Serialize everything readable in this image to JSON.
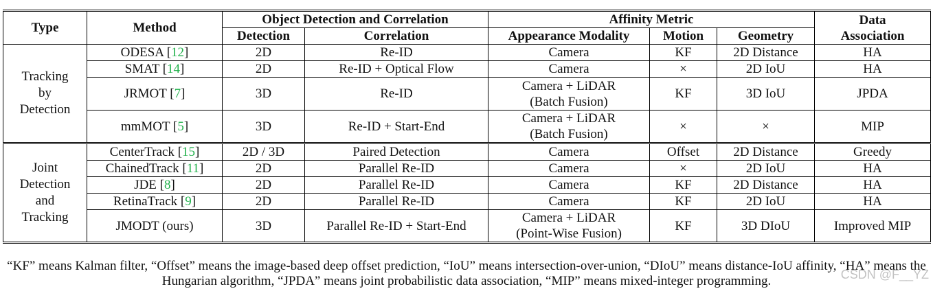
{
  "headers": {
    "type": "Type",
    "method": "Method",
    "odc_group": "Object Detection and Correlation",
    "affinity_group": "Affinity Metric",
    "da_line1": "Data",
    "da_line2": "Association",
    "detection": "Detection",
    "correlation": "Correlation",
    "appearance": "Appearance Modality",
    "motion": "Motion",
    "geometry": "Geometry"
  },
  "groups": [
    {
      "label_lines": [
        "Tracking",
        "by",
        "Detection"
      ]
    },
    {
      "label_lines": [
        "Joint",
        "Detection",
        "and",
        "Tracking"
      ]
    }
  ],
  "rows": [
    {
      "method": "ODESA",
      "ref": "12",
      "detection": "2D",
      "correlation": "Re-ID",
      "appearance": [
        "Camera"
      ],
      "motion": "KF",
      "geometry": "2D Distance",
      "association": "HA"
    },
    {
      "method": "SMAT",
      "ref": "14",
      "detection": "2D",
      "correlation": "Re-ID + Optical Flow",
      "appearance": [
        "Camera"
      ],
      "motion": "×",
      "geometry": "2D IoU",
      "association": "HA"
    },
    {
      "method": "JRMOT",
      "ref": "7",
      "detection": "3D",
      "correlation": "Re-ID",
      "appearance": [
        "Camera + LiDAR",
        "(Batch Fusion)"
      ],
      "motion": "KF",
      "geometry": "3D IoU",
      "association": "JPDA"
    },
    {
      "method": "mmMOT",
      "ref": "5",
      "detection": "3D",
      "correlation": "Re-ID + Start-End",
      "appearance": [
        "Camera + LiDAR",
        "(Batch Fusion)"
      ],
      "motion": "×",
      "geometry": "×",
      "association": "MIP"
    },
    {
      "method": "CenterTrack",
      "ref": "15",
      "detection": "2D / 3D",
      "correlation": "Paired Detection",
      "appearance": [
        "Camera"
      ],
      "motion": "Offset",
      "geometry": "2D Distance",
      "association": "Greedy"
    },
    {
      "method": "ChainedTrack",
      "ref": "11",
      "detection": "2D",
      "correlation": "Parallel Re-ID",
      "appearance": [
        "Camera"
      ],
      "motion": "×",
      "geometry": "2D IoU",
      "association": "HA"
    },
    {
      "method": "JDE",
      "ref": "8",
      "detection": "2D",
      "correlation": "Parallel Re-ID",
      "appearance": [
        "Camera"
      ],
      "motion": "KF",
      "geometry": "2D Distance",
      "association": "HA"
    },
    {
      "method": "RetinaTrack",
      "ref": "9",
      "detection": "2D",
      "correlation": "Parallel Re-ID",
      "appearance": [
        "Camera"
      ],
      "motion": "KF",
      "geometry": "2D IoU",
      "association": "HA"
    },
    {
      "method": "JMODT (ours)",
      "ref": "",
      "detection": "3D",
      "correlation": "Parallel Re-ID + Start-End",
      "appearance": [
        "Camera + LiDAR",
        "(Point-Wise Fusion)"
      ],
      "motion": "KF",
      "geometry": "3D DIoU",
      "association": "Improved MIP"
    }
  ],
  "footnote": "“KF” means Kalman filter, “Offset” means the image-based deep offset prediction, “IoU” means intersection-over-union, “DIoU” means distance-IoU affinity, “HA” means the Hungarian algorithm, “JPDA” means joint probabilistic data association, “MIP” means mixed-integer programming.",
  "watermark": "CSDN @F__YZ",
  "colors": {
    "reference_link": "#22b14c"
  }
}
